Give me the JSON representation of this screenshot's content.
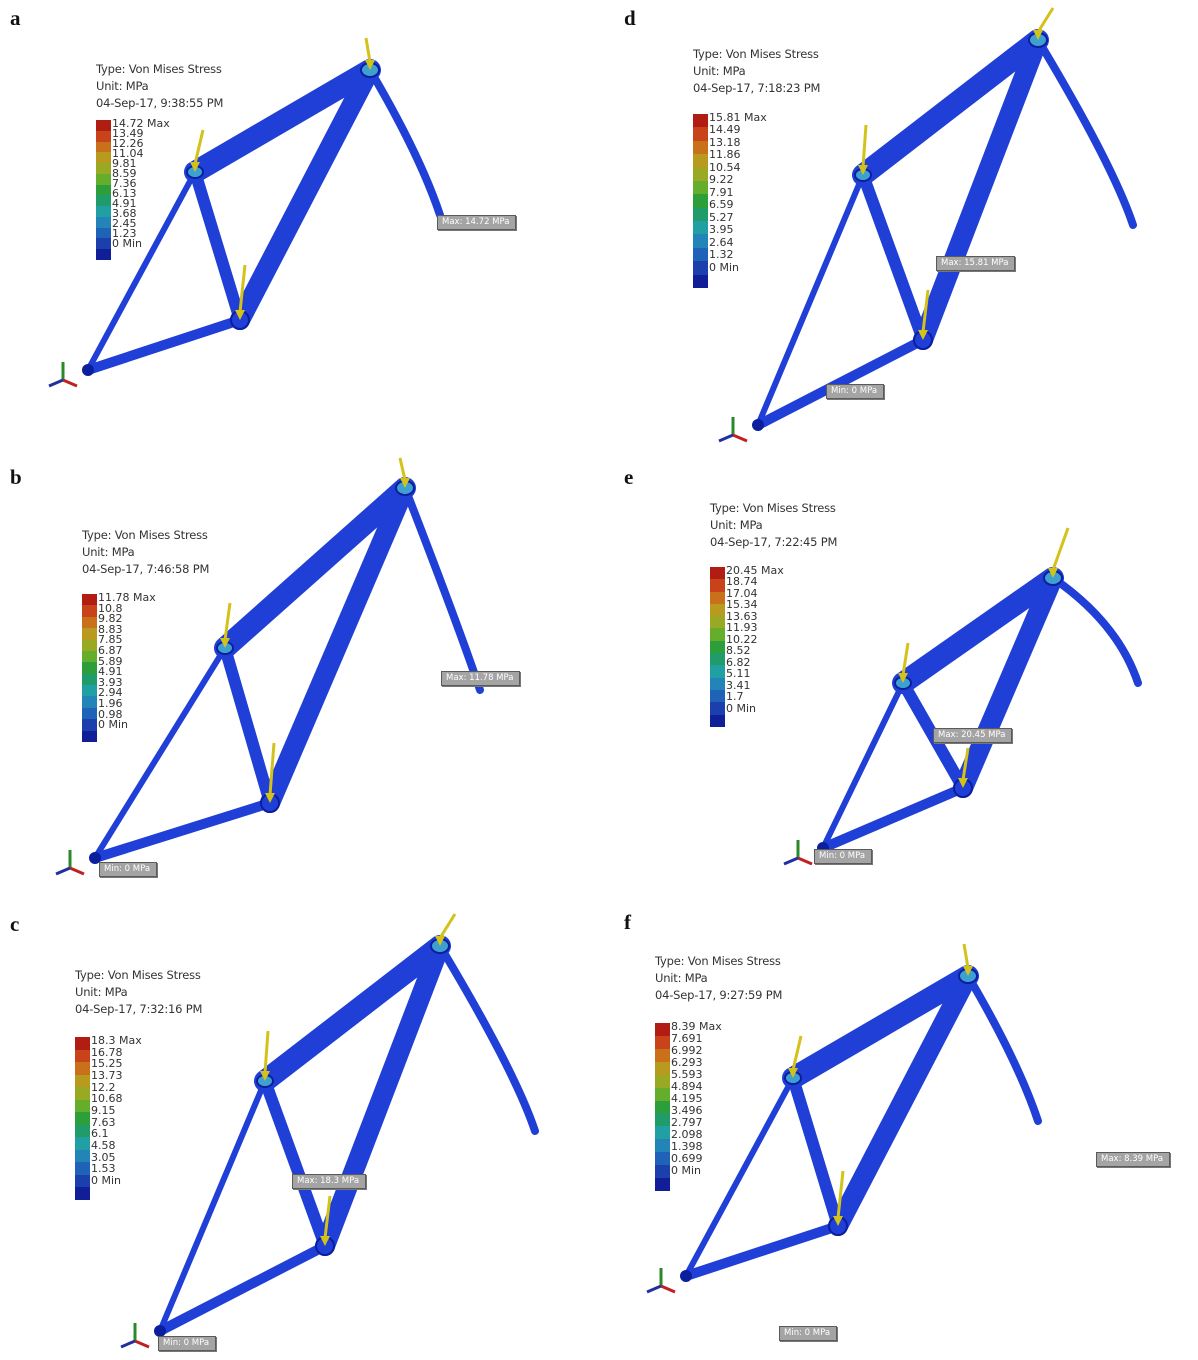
{
  "colors": {
    "frame": "#1f3fd6",
    "frame_dark": "#0b1e9e",
    "load_arrow": "#d4c21a",
    "scale": [
      "#b21d13",
      "#c8431a",
      "#c9701b",
      "#b79a1e",
      "#9aa923",
      "#64ae2b",
      "#2c9e3a",
      "#1f9c6a",
      "#21a0a3",
      "#2385b7",
      "#1f63b8",
      "#1b3fab",
      "#101f98"
    ]
  },
  "panels": [
    {
      "id": "a",
      "type": "Type: Von Mises Stress",
      "unit": "Unit: MPa",
      "timestamp": "04-Sep-17, 9:38:55 PM",
      "ticks": [
        "14.72 Max",
        "13.49",
        "12.26",
        "11.04",
        "9.81",
        "8.59",
        "7.36",
        "6.13",
        "4.91",
        "3.68",
        "2.45",
        "1.23",
        "0 Min"
      ],
      "max_probe": "Max: 14.72 MPa",
      "min_probe": "",
      "geometry": "v1"
    },
    {
      "id": "b",
      "type": "Type: Von Mises Stress",
      "unit": "Unit: MPa",
      "timestamp": "04-Sep-17, 7:46:58 PM",
      "ticks": [
        "11.78 Max",
        "10.8",
        "9.82",
        "8.83",
        "7.85",
        "6.87",
        "5.89",
        "4.91",
        "3.93",
        "2.94",
        "1.96",
        "0.98",
        "0 Min"
      ],
      "max_probe": "Max: 11.78 MPa",
      "min_probe": "Min: 0 MPa",
      "geometry": "v2"
    },
    {
      "id": "c",
      "type": "Type: Von Mises Stress",
      "unit": "Unit: MPa",
      "timestamp": "04-Sep-17, 7:32:16 PM",
      "ticks": [
        "18.3 Max",
        "16.78",
        "15.25",
        "13.73",
        "12.2",
        "10.68",
        "9.15",
        "7.63",
        "6.1",
        "4.58",
        "3.05",
        "1.53",
        "0 Min"
      ],
      "max_probe": "Max: 18.3 MPa",
      "min_probe": "Min: 0 MPa",
      "geometry": "v3"
    },
    {
      "id": "d",
      "type": "Type: Von Mises Stress",
      "unit": "Unit: MPa",
      "timestamp": "04-Sep-17, 7:18:23 PM",
      "ticks": [
        "15.81 Max",
        "14.49",
        "13.18",
        "11.86",
        "10.54",
        "9.22",
        "7.91",
        "6.59",
        "5.27",
        "3.95",
        "2.64",
        "1.32",
        "0 Min"
      ],
      "max_probe": "Max: 15.81 MPa",
      "min_probe": "Min: 0 MPa",
      "geometry": "v3"
    },
    {
      "id": "e",
      "type": "Type: Von Mises Stress",
      "unit": "Unit: MPa",
      "timestamp": "04-Sep-17, 7:22:45 PM",
      "ticks": [
        "20.45 Max",
        "18.74",
        "17.04",
        "15.34",
        "13.63",
        "11.93",
        "10.22",
        "8.52",
        "6.82",
        "5.11",
        "3.41",
        "1.7",
        "0 Min"
      ],
      "max_probe": "Max: 20.45 MPa",
      "min_probe": "Min: 0 MPa",
      "geometry": "v4"
    },
    {
      "id": "f",
      "type": "Type: Von Mises Stress",
      "unit": "Unit: MPa",
      "timestamp": "04-Sep-17, 9:27:59 PM",
      "ticks": [
        "8.39 Max",
        "7.691",
        "6.992",
        "6.293",
        "5.593",
        "4.894",
        "4.195",
        "3.496",
        "2.797",
        "2.098",
        "1.398",
        "0.699",
        "0 Min"
      ],
      "max_probe": "Max: 8.39 MPa",
      "min_probe": "Min: 0 MPa",
      "geometry": "v1"
    }
  ]
}
